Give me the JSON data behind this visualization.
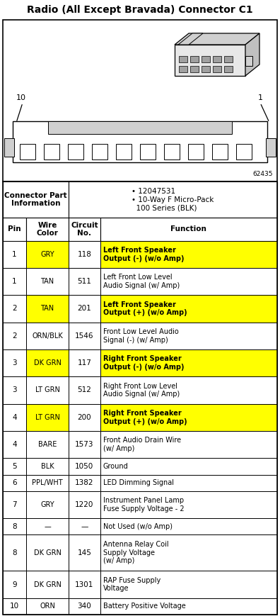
{
  "title": "Radio (All Except Bravada) Connector C1",
  "connector_info_value": "• 12047531\n• 10-Way F Micro-Pack\n  100 Series (BLK)",
  "diagram_number": "62435",
  "rows": [
    {
      "pin": "1",
      "color": "GRY",
      "circuit": "118",
      "function": "Left Front Speaker\nOutput (-) (w/o Amp)",
      "hl_c": true,
      "hl_f": true
    },
    {
      "pin": "1",
      "color": "TAN",
      "circuit": "511",
      "function": "Left Front Low Level\nAudio Signal (w/ Amp)",
      "hl_c": false,
      "hl_f": false
    },
    {
      "pin": "2",
      "color": "TAN",
      "circuit": "201",
      "function": "Left Front Speaker\nOutput (+) (w/o Amp)",
      "hl_c": true,
      "hl_f": true
    },
    {
      "pin": "2",
      "color": "ORN/BLK",
      "circuit": "1546",
      "function": "Front Low Level Audio\nSignal (-) (w/ Amp)",
      "hl_c": false,
      "hl_f": false
    },
    {
      "pin": "3",
      "color": "DK GRN",
      "circuit": "117",
      "function": "Right Front Speaker\nOutput (-) (w/o Amp)",
      "hl_c": true,
      "hl_f": true
    },
    {
      "pin": "3",
      "color": "LT GRN",
      "circuit": "512",
      "function": "Right Front Low Level\nAudio Signal (w/ Amp)",
      "hl_c": false,
      "hl_f": false
    },
    {
      "pin": "4",
      "color": "LT GRN",
      "circuit": "200",
      "function": "Right Front Speaker\nOutput (+) (w/o Amp)",
      "hl_c": true,
      "hl_f": true
    },
    {
      "pin": "4",
      "color": "BARE",
      "circuit": "1573",
      "function": "Front Audio Drain Wire\n(w/ Amp)",
      "hl_c": false,
      "hl_f": false
    },
    {
      "pin": "5",
      "color": "BLK",
      "circuit": "1050",
      "function": "Ground",
      "hl_c": false,
      "hl_f": false
    },
    {
      "pin": "6",
      "color": "PPL/WHT",
      "circuit": "1382",
      "function": "LED Dimming Signal",
      "hl_c": false,
      "hl_f": false
    },
    {
      "pin": "7",
      "color": "GRY",
      "circuit": "1220",
      "function": "Instrument Panel Lamp\nFuse Supply Voltage - 2",
      "hl_c": false,
      "hl_f": false
    },
    {
      "pin": "8",
      "color": "—",
      "circuit": "—",
      "function": "Not Used (w/o Amp)",
      "hl_c": false,
      "hl_f": false
    },
    {
      "pin": "8",
      "color": "DK GRN",
      "circuit": "145",
      "function": "Antenna Relay Coil\nSupply Voltage\n(w/ Amp)",
      "hl_c": false,
      "hl_f": false
    },
    {
      "pin": "9",
      "color": "DK GRN",
      "circuit": "1301",
      "function": "RAP Fuse Supply\nVoltage",
      "hl_c": false,
      "hl_f": false
    },
    {
      "pin": "10",
      "color": "ORN",
      "circuit": "340",
      "function": "Battery Positive Voltage",
      "hl_c": false,
      "hl_f": false
    }
  ],
  "yellow": "#FFFF00",
  "white": "#FFFFFF",
  "black": "#000000",
  "gray1": "#E8E8E8",
  "gray2": "#D0D0D0",
  "gray3": "#C0C0C0",
  "gray4": "#A0A0A0"
}
